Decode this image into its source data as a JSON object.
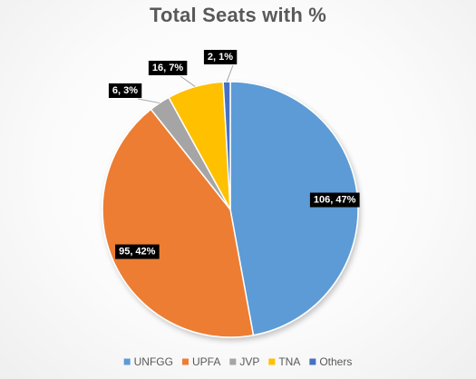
{
  "chart_data": {
    "type": "pie",
    "title": "Total Seats with %",
    "categories": [
      "UNFGG",
      "UPFA",
      "JVP",
      "TNA",
      "Others"
    ],
    "values": [
      106,
      95,
      6,
      16,
      2
    ],
    "data_labels": [
      "106, 47%",
      "95, 42%",
      "6, 3%",
      "16, 7%",
      "2, 1%"
    ],
    "colors": [
      "#5B9BD5",
      "#ED7D31",
      "#A5A5A5",
      "#FFC000",
      "#4472C4"
    ],
    "legend": {
      "position": "bottom",
      "entries": [
        "UNFGG",
        "UPFA",
        "JVP",
        "TNA",
        "Others"
      ]
    }
  }
}
